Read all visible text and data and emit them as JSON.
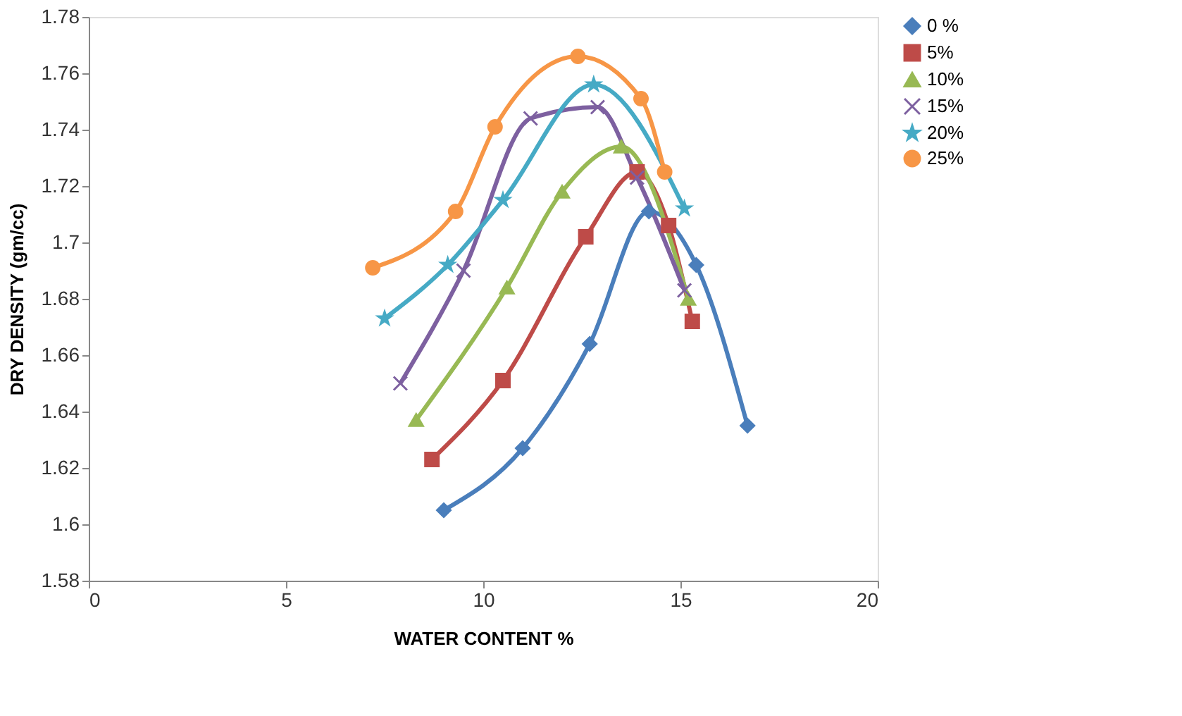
{
  "chart_data": {
    "type": "line",
    "xlabel": "WATER CONTENT %",
    "ylabel": "DRY DENSITY (gm/cc)",
    "xlim": [
      0,
      20
    ],
    "xticks": [
      0,
      5,
      10,
      15,
      20
    ],
    "ylim": [
      1.58,
      1.78
    ],
    "yticks": [
      1.58,
      1.6,
      1.62,
      1.64,
      1.66,
      1.68,
      1.7,
      1.72,
      1.74,
      1.76,
      1.78
    ],
    "grid": false,
    "legend": "right",
    "line_style": "solid",
    "series": [
      {
        "name": " 0 %",
        "color": "#4a7ebb",
        "marker": "diamond",
        "x": [
          9.0,
          11.0,
          12.7,
          14.2,
          15.4,
          16.7
        ],
        "values": [
          1.605,
          1.627,
          1.664,
          1.711,
          1.692,
          1.635
        ]
      },
      {
        "name": "5%",
        "color": "#be4b48",
        "marker": "square",
        "x": [
          8.7,
          10.5,
          12.6,
          13.9,
          14.7,
          15.3
        ],
        "values": [
          1.623,
          1.651,
          1.702,
          1.725,
          1.706,
          1.672
        ]
      },
      {
        "name": "10%",
        "color": "#98b954",
        "marker": "triangle",
        "x": [
          8.3,
          10.6,
          12.0,
          13.5,
          15.2
        ],
        "values": [
          1.637,
          1.684,
          1.718,
          1.734,
          1.68
        ]
      },
      {
        "name": "15%",
        "color": "#7d60a0",
        "marker": "cross",
        "x": [
          7.9,
          9.5,
          11.2,
          12.9,
          13.9,
          15.1
        ],
        "values": [
          1.65,
          1.69,
          1.744,
          1.748,
          1.723,
          1.683
        ]
      },
      {
        "name": "20%",
        "color": "#46aac5",
        "marker": "star",
        "x": [
          7.5,
          9.1,
          10.5,
          12.8,
          15.1
        ],
        "values": [
          1.673,
          1.692,
          1.715,
          1.756,
          1.712
        ]
      },
      {
        "name": "25%",
        "color": "#f79646",
        "marker": "circle",
        "x": [
          7.2,
          9.3,
          10.3,
          12.4,
          14.0,
          14.6
        ],
        "values": [
          1.691,
          1.711,
          1.741,
          1.766,
          1.751,
          1.725
        ]
      }
    ]
  }
}
